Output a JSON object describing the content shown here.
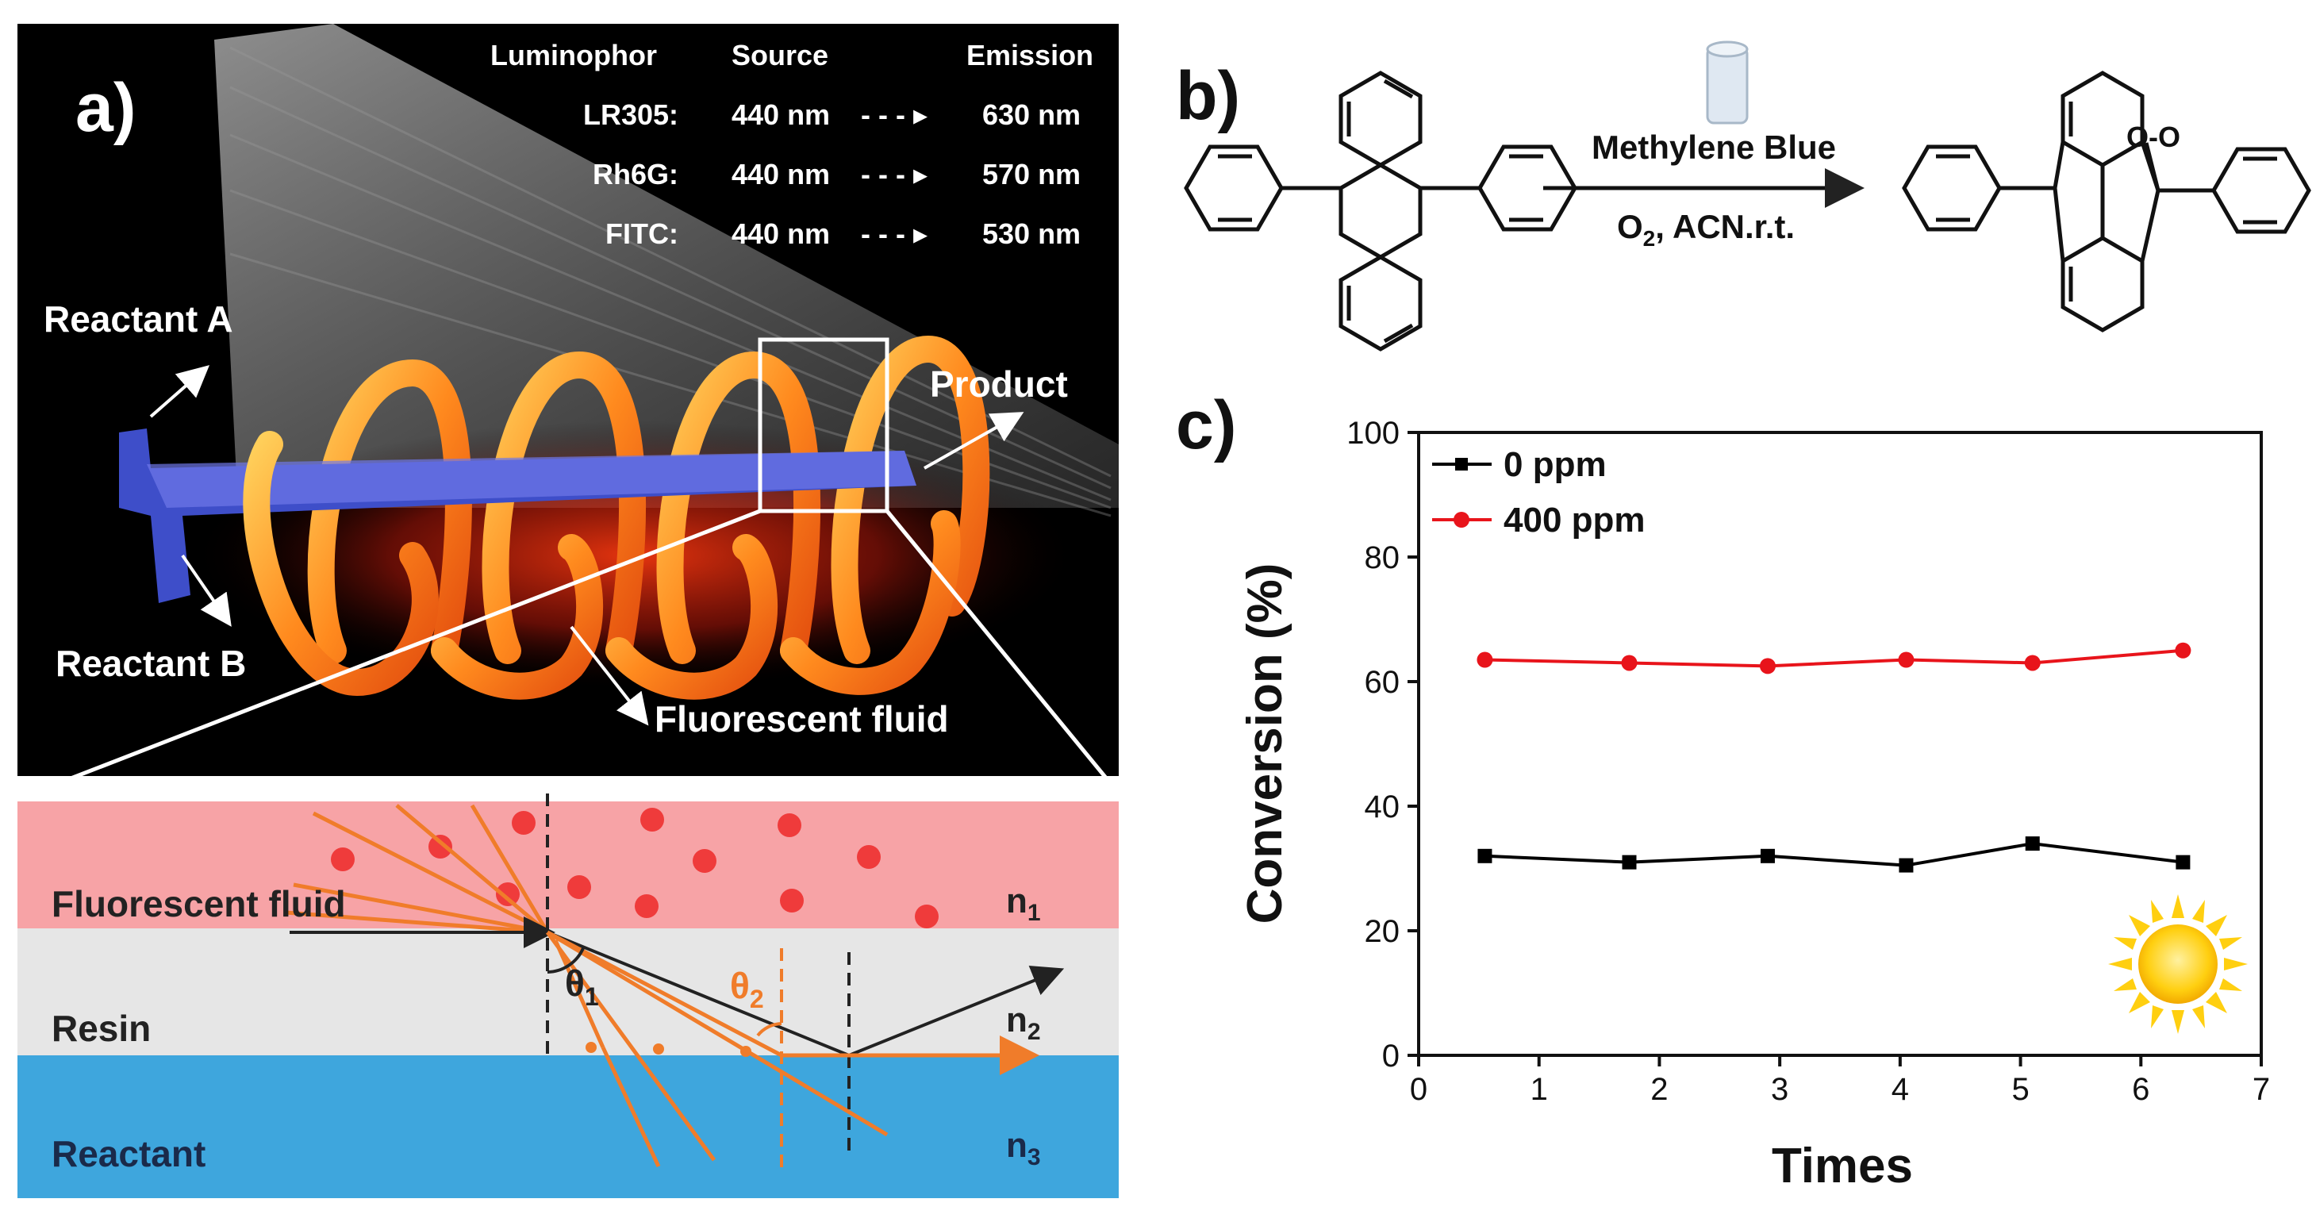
{
  "panel_labels": {
    "a": "a)",
    "b": "b)",
    "c": "c)"
  },
  "panel_a": {
    "table": {
      "headers": [
        "Luminophor",
        "Source",
        "Emission"
      ],
      "rows": [
        {
          "name": "LR305:",
          "source": "440 nm",
          "arrow": "- - - ▸",
          "emission": "630 nm"
        },
        {
          "name": "Rh6G:",
          "source": "440 nm",
          "arrow": "- - - ▸",
          "emission": "570 nm"
        },
        {
          "name": "FITC:",
          "source": "440 nm",
          "arrow": "- - - ▸",
          "emission": "530 nm"
        }
      ]
    },
    "labels": {
      "reactant_a": "Reactant A",
      "reactant_b": "Reactant B",
      "product": "Product",
      "fluorescent_fluid": "Fluorescent fluid"
    },
    "layers": {
      "fluid": "Fluorescent fluid",
      "resin": "Resin",
      "reactant": "Reactant",
      "n1": "n",
      "n1_sub": "1",
      "n2": "n",
      "n2_sub": "2",
      "n3": "n",
      "n3_sub": "3",
      "theta1": "θ",
      "theta1_sub": "1",
      "theta2": "θ",
      "theta2_sub": "2"
    },
    "colors": {
      "fluid_layer": "#f7a3a6",
      "resin_layer": "#e6e6e6",
      "reactant_layer": "#3ea6dd",
      "ray": "#f07c2a",
      "dot": "#ef3b3b"
    }
  },
  "panel_b": {
    "reagent": "Methylene Blue",
    "conditions_o": "O",
    "conditions_sub": "2",
    "conditions_rest": ", ACN.r.t.",
    "peroxide_label": "O-O"
  },
  "chart_data": {
    "type": "line",
    "xlabel": "Times",
    "ylabel": "Conversion (%)",
    "xlim": [
      0,
      7
    ],
    "ylim": [
      0,
      100
    ],
    "xticks": [
      "0",
      "1",
      "2",
      "3",
      "4",
      "5",
      "6",
      "7"
    ],
    "yticks": [
      "0",
      "20",
      "40",
      "60",
      "80",
      "100"
    ],
    "legend_position": "top-left",
    "series": [
      {
        "name": "0 ppm",
        "color": "#000000",
        "marker": "square",
        "x": [
          0.55,
          1.75,
          2.9,
          4.05,
          5.1,
          6.35
        ],
        "y": [
          32,
          31,
          32,
          30.5,
          34,
          31
        ]
      },
      {
        "name": "400 ppm",
        "color": "#e8141b",
        "marker": "circle",
        "x": [
          0.55,
          1.75,
          2.9,
          4.05,
          5.1,
          6.35
        ],
        "y": [
          63.5,
          63,
          62.5,
          63.5,
          63,
          65
        ]
      }
    ]
  }
}
